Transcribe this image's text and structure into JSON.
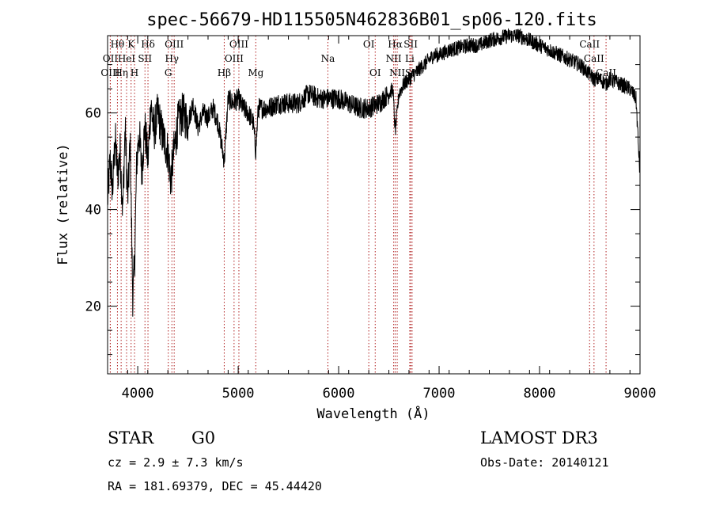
{
  "chart_data": {
    "type": "line",
    "title": "spec-56679-HD115505N462836B01_sp06-120.fits",
    "xlabel": "Wavelength (Å)",
    "ylabel": "Flux (relative)",
    "xlim": [
      3700,
      9000
    ],
    "ylim": [
      6,
      76
    ],
    "x_ticks": [
      4000,
      5000,
      6000,
      7000,
      8000,
      9000
    ],
    "y_ticks": [
      20,
      40,
      60
    ],
    "grid": false,
    "series": [
      {
        "name": "flux",
        "color": "#000000",
        "x": [
          3700,
          3725,
          3750,
          3775,
          3800,
          3825,
          3850,
          3875,
          3900,
          3925,
          3950,
          3968,
          3990,
          4015,
          4040,
          4070,
          4102,
          4130,
          4160,
          4200,
          4250,
          4300,
          4330,
          4340,
          4360,
          4400,
          4450,
          4500,
          4550,
          4600,
          4650,
          4700,
          4750,
          4800,
          4861,
          4900,
          4950,
          5000,
          5050,
          5100,
          5150,
          5175,
          5200,
          5250,
          5300,
          5400,
          5500,
          5600,
          5700,
          5800,
          5900,
          6000,
          6100,
          6200,
          6300,
          6400,
          6450,
          6500,
          6540,
          6563,
          6600,
          6650,
          6700,
          6750,
          6800,
          6850,
          6900,
          6950,
          7000,
          7100,
          7200,
          7300,
          7400,
          7500,
          7600,
          7700,
          7800,
          7900,
          8000,
          8100,
          8200,
          8300,
          8400,
          8500,
          8542,
          8600,
          8662,
          8700,
          8800,
          8900,
          8960,
          9000
        ],
        "values": [
          42,
          50,
          44,
          55,
          47,
          52,
          40,
          57,
          42,
          54,
          22,
          28,
          50,
          56,
          48,
          57,
          50,
          62,
          56,
          60,
          55,
          52,
          46,
          48,
          52,
          58,
          60,
          58,
          62,
          57,
          60,
          59,
          61,
          58,
          50,
          63,
          62,
          63,
          61,
          60,
          58,
          52,
          61,
          61,
          61,
          62,
          62,
          62,
          64,
          63,
          63,
          63,
          62,
          61,
          61,
          62,
          63,
          64,
          65,
          56,
          64,
          66,
          67,
          68,
          69,
          70,
          71,
          72,
          72,
          73,
          73.5,
          74,
          74,
          75,
          75.5,
          76,
          76,
          75,
          74,
          73,
          72,
          71,
          70,
          68,
          67,
          67,
          66,
          67,
          66,
          65,
          63,
          47
        ]
      }
    ],
    "spectral_lines": [
      {
        "label": "Hθ",
        "wavelength": 3798,
        "row": 0
      },
      {
        "label": "K",
        "wavelength": 3934,
        "row": 0
      },
      {
        "label": "Hδ",
        "wavelength": 4102,
        "row": 0
      },
      {
        "label": "OIII",
        "wavelength": 4363,
        "row": 0
      },
      {
        "label": "OIII",
        "wavelength": 5007,
        "row": 0
      },
      {
        "label": "OI",
        "wavelength": 6300,
        "row": 0
      },
      {
        "label": "Hα",
        "wavelength": 6563,
        "row": 0
      },
      {
        "label": "SII",
        "wavelength": 6717,
        "row": 0
      },
      {
        "label": "CaII",
        "wavelength": 8498,
        "row": 0
      },
      {
        "label": "OII",
        "wavelength": 3727,
        "row": 1
      },
      {
        "label": "HeI",
        "wavelength": 3889,
        "row": 1
      },
      {
        "label": "SII",
        "wavelength": 4072,
        "row": 1
      },
      {
        "label": "Hγ",
        "wavelength": 4340,
        "row": 1
      },
      {
        "label": "OIII",
        "wavelength": 4959,
        "row": 1
      },
      {
        "label": "Na",
        "wavelength": 5893,
        "row": 1
      },
      {
        "label": "NII",
        "wavelength": 6548,
        "row": 1
      },
      {
        "label": "Li",
        "wavelength": 6708,
        "row": 1
      },
      {
        "label": "CaII",
        "wavelength": 8542,
        "row": 1
      },
      {
        "label": "OIII",
        "wavelength": 3727,
        "row": 2
      },
      {
        "label": "Hη",
        "wavelength": 3835,
        "row": 2
      },
      {
        "label": "H",
        "wavelength": 3968,
        "row": 2
      },
      {
        "label": "G",
        "wavelength": 4304,
        "row": 2
      },
      {
        "label": "Hβ",
        "wavelength": 4861,
        "row": 2
      },
      {
        "label": "Mg",
        "wavelength": 5175,
        "row": 2
      },
      {
        "label": "OI",
        "wavelength": 6364,
        "row": 2
      },
      {
        "label": "NII",
        "wavelength": 6583,
        "row": 2
      },
      {
        "label": "SII",
        "wavelength": 6731,
        "row": 2
      },
      {
        "label": "CaII",
        "wavelength": 8662,
        "row": 2
      }
    ]
  },
  "info": {
    "object_class": "STAR",
    "subclass": "G0",
    "redshift": "cz = 2.9 ± 7.3 km/s",
    "coords": "RA = 181.69379, DEC =  45.44420",
    "survey": "LAMOST DR3",
    "obs_date": "Obs-Date: 20140121"
  }
}
